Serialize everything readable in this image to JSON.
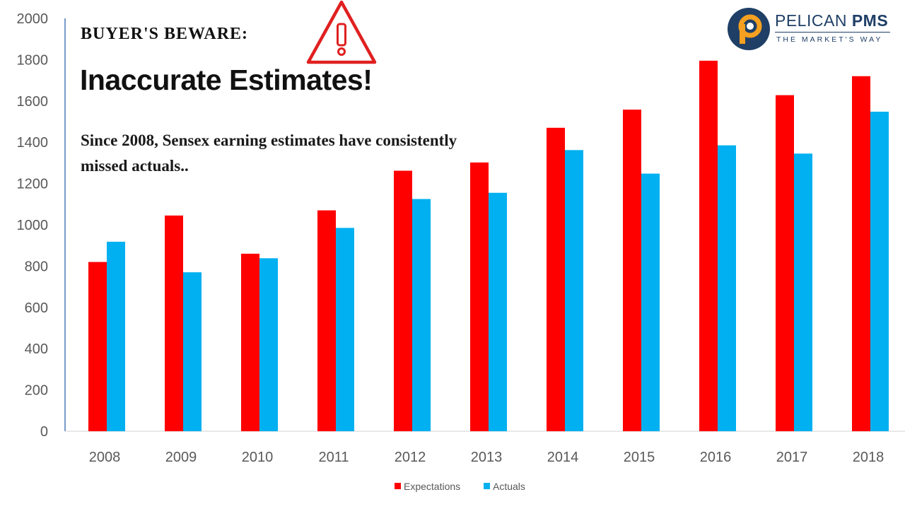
{
  "headline": "BUYER'S BEWARE:",
  "title": "Inaccurate Estimates!",
  "subtitle": "Since 2008, Sensex earning estimates have consistently missed actuals..",
  "brand": {
    "name_light": "PELICAN ",
    "name_bold": "PMS",
    "tagline": "THE MARKET'S WAY",
    "color": "#1f3f66",
    "accent": "#f4a020"
  },
  "warning_icon": {
    "icon": "warning-triangle-icon",
    "color": "#e02020"
  },
  "chart_data": {
    "type": "bar",
    "categories": [
      "2008",
      "2009",
      "2010",
      "2011",
      "2012",
      "2013",
      "2014",
      "2015",
      "2016",
      "2017",
      "2018"
    ],
    "series": [
      {
        "name": "Expectations",
        "color": "#ff0000",
        "values": [
          820,
          1045,
          860,
          1070,
          1262,
          1302,
          1470,
          1558,
          1795,
          1628,
          1720
        ]
      },
      {
        "name": "Actuals",
        "color": "#00b0f0",
        "values": [
          918,
          770,
          838,
          985,
          1125,
          1155,
          1362,
          1248,
          1385,
          1345,
          1548
        ]
      }
    ],
    "yticks": [
      "0",
      "200",
      "400",
      "600",
      "800",
      "1000",
      "1200",
      "1400",
      "1600",
      "1800",
      "2000"
    ],
    "ylim": [
      0,
      2000
    ],
    "xlabel": "",
    "ylabel": "",
    "grid": false,
    "legend": "bottom"
  }
}
